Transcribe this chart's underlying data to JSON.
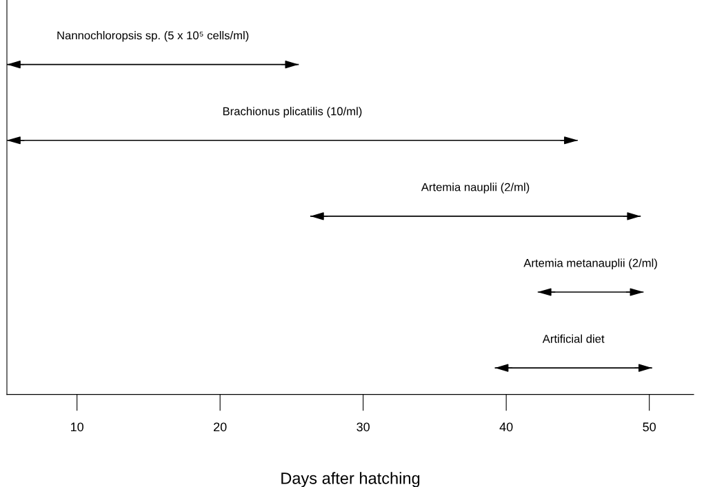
{
  "chart_data": {
    "type": "bar",
    "orientation": "horizontal",
    "xlabel": "Days after hatching",
    "categories": [
      "Nannochloropsis sp. (5 x 10⁵ cells/ml)",
      "Brachionus plicatilis (10/ml)",
      "Artemia nauplii (2/ml)",
      "Artemia metanauplii (2/ml)",
      "Artificial diet"
    ],
    "base": [
      5.1,
      5.1,
      26.3,
      42.2,
      39.2
    ],
    "values": [
      20.4,
      39.9,
      23.1,
      7.4,
      11.0
    ],
    "color": "#000000",
    "xlim": [
      5.1,
      53.1
    ],
    "xticks": [
      10,
      20,
      30,
      40,
      50
    ],
    "tick_labels": "x",
    "grid": false,
    "legend": false
  }
}
